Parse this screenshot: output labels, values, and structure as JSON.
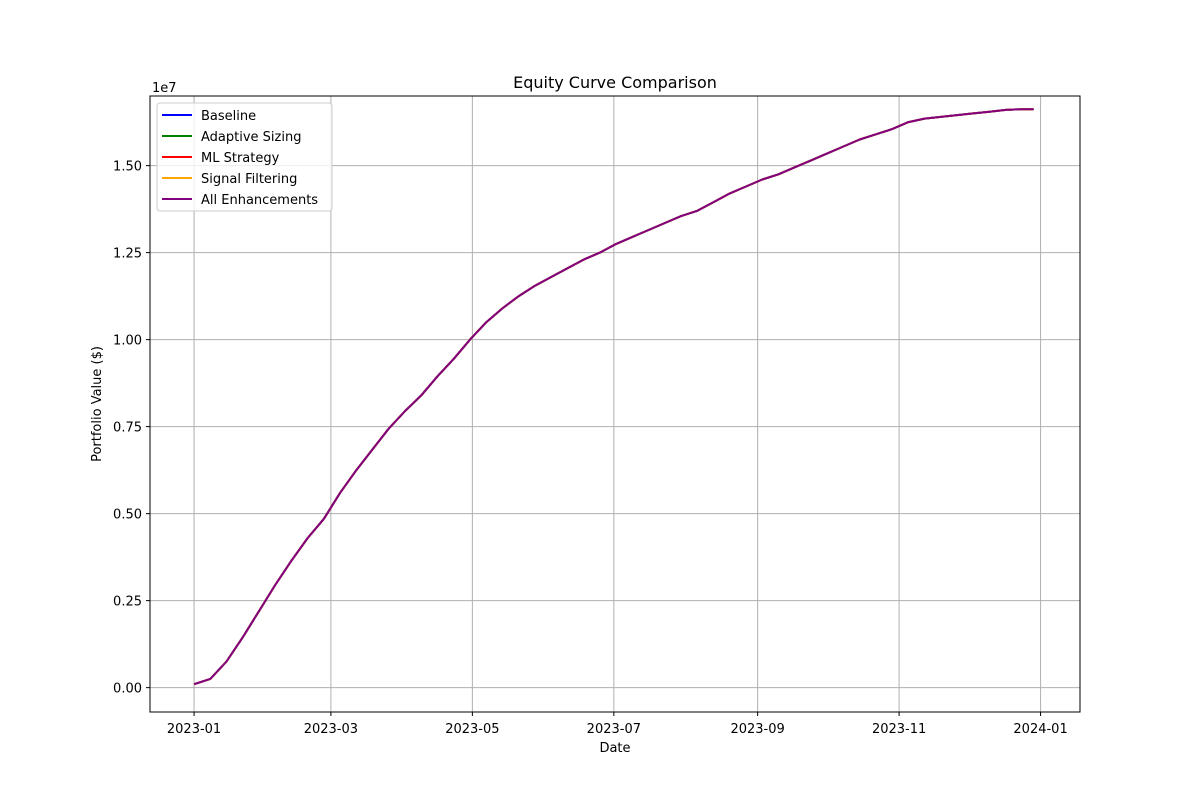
{
  "chart_data": {
    "type": "line",
    "title": "Equity Curve Comparison",
    "xlabel": "Date",
    "ylabel": "Portfolio Value ($)",
    "y_offset_label": "1e7",
    "y_scale": 10000000,
    "grid": true,
    "legend_position": "top-left",
    "x_ticks": [
      "2023-01",
      "2023-03",
      "2023-05",
      "2023-07",
      "2023-09",
      "2023-11",
      "2024-01"
    ],
    "y_ticks": [
      "0.00",
      "0.25",
      "0.50",
      "0.75",
      "1.00",
      "1.25",
      "1.50"
    ],
    "x": [
      "2023-01-01",
      "2023-01-08",
      "2023-01-15",
      "2023-01-22",
      "2023-01-29",
      "2023-02-05",
      "2023-02-12",
      "2023-02-19",
      "2023-02-26",
      "2023-03-05",
      "2023-03-12",
      "2023-03-19",
      "2023-03-26",
      "2023-04-02",
      "2023-04-09",
      "2023-04-16",
      "2023-04-23",
      "2023-04-30",
      "2023-05-07",
      "2023-05-14",
      "2023-05-21",
      "2023-05-28",
      "2023-06-04",
      "2023-06-11",
      "2023-06-18",
      "2023-06-25",
      "2023-07-02",
      "2023-07-09",
      "2023-07-16",
      "2023-07-23",
      "2023-07-30",
      "2023-08-06",
      "2023-08-13",
      "2023-08-20",
      "2023-08-27",
      "2023-09-03",
      "2023-09-10",
      "2023-09-17",
      "2023-09-24",
      "2023-10-01",
      "2023-10-08",
      "2023-10-15",
      "2023-10-22",
      "2023-10-29",
      "2023-11-05",
      "2023-11-12",
      "2023-11-19",
      "2023-11-26",
      "2023-12-03",
      "2023-12-10",
      "2023-12-17",
      "2023-12-24",
      "2023-12-29"
    ],
    "values": [
      100000,
      250000,
      750000,
      1450000,
      2200000,
      2950000,
      3650000,
      4300000,
      4850000,
      5600000,
      6250000,
      6850000,
      7450000,
      7950000,
      8400000,
      8950000,
      9450000,
      10000000,
      10500000,
      10900000,
      11250000,
      11550000,
      11800000,
      12050000,
      12300000,
      12500000,
      12750000,
      12950000,
      13150000,
      13350000,
      13550000,
      13700000,
      13950000,
      14200000,
      14400000,
      14600000,
      14750000,
      14950000,
      15150000,
      15350000,
      15550000,
      15750000,
      15900000,
      16050000,
      16250000,
      16350000,
      16400000,
      16450000,
      16500000,
      16550000,
      16600000,
      16620000,
      16620000
    ],
    "series": [
      {
        "name": "Baseline",
        "color": "#0000ff"
      },
      {
        "name": "Adaptive Sizing",
        "color": "#008000"
      },
      {
        "name": "ML Strategy",
        "color": "#ff0000"
      },
      {
        "name": "Signal Filtering",
        "color": "#ffa500"
      },
      {
        "name": "All Enhancements",
        "color": "#800080"
      }
    ]
  }
}
